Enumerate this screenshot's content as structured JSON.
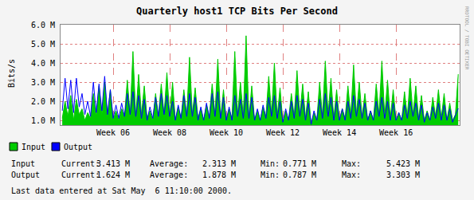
{
  "chart_data": {
    "type": "line",
    "title": "Quarterly host1 TCP Bits Per Second",
    "y_label": "Bits/s",
    "side_text": "RRDTOOL / TOBI OETIKER",
    "grid": true,
    "xlim": [
      4.14,
      18.25
    ],
    "xticks": [
      {
        "value": 6,
        "label": "Week 06"
      },
      {
        "value": 8,
        "label": "Week 08"
      },
      {
        "value": 10,
        "label": "Week 10"
      },
      {
        "value": 12,
        "label": "Week 12"
      },
      {
        "value": 14,
        "label": "Week 14"
      },
      {
        "value": 16,
        "label": "Week 16"
      }
    ],
    "ylim": [
      750000,
      6000000
    ],
    "yticks": [
      {
        "value": 1000000,
        "label": "1.0 M"
      },
      {
        "value": 2000000,
        "label": "2.0 M"
      },
      {
        "value": 3000000,
        "label": "3.0 M"
      },
      {
        "value": 4000000,
        "label": "4.0 M"
      },
      {
        "value": 5000000,
        "label": "5.0 M"
      },
      {
        "value": 6000000,
        "label": "6.0 M"
      }
    ],
    "x": [
      4.2,
      4.3,
      4.4,
      4.5,
      4.6,
      4.7,
      4.8,
      4.9,
      5.0,
      5.1,
      5.2,
      5.3,
      5.4,
      5.5,
      5.6,
      5.7,
      5.8,
      5.9,
      6.0,
      6.1,
      6.2,
      6.3,
      6.4,
      6.5,
      6.6,
      6.7,
      6.8,
      6.9,
      7.0,
      7.1,
      7.2,
      7.3,
      7.4,
      7.5,
      7.6,
      7.7,
      7.8,
      7.9,
      8.0,
      8.1,
      8.2,
      8.3,
      8.4,
      8.5,
      8.6,
      8.7,
      8.8,
      8.9,
      9.0,
      9.1,
      9.2,
      9.3,
      9.4,
      9.5,
      9.6,
      9.7,
      9.8,
      9.9,
      10.0,
      10.1,
      10.2,
      10.3,
      10.4,
      10.5,
      10.6,
      10.7,
      10.8,
      10.9,
      11.0,
      11.1,
      11.2,
      11.3,
      11.4,
      11.5,
      11.6,
      11.7,
      11.8,
      11.9,
      12.0,
      12.1,
      12.2,
      12.3,
      12.4,
      12.5,
      12.6,
      12.7,
      12.8,
      12.9,
      13.0,
      13.1,
      13.2,
      13.3,
      13.4,
      13.5,
      13.6,
      13.7,
      13.8,
      13.9,
      14.0,
      14.1,
      14.2,
      14.3,
      14.4,
      14.5,
      14.6,
      14.7,
      14.8,
      14.9,
      15.0,
      15.1,
      15.2,
      15.3,
      15.4,
      15.5,
      15.6,
      15.7,
      15.8,
      15.9,
      16.0,
      16.1,
      16.2,
      16.3,
      16.4,
      16.5,
      16.6,
      16.7,
      16.8,
      16.9,
      17.0,
      17.1,
      17.2,
      17.3,
      17.4,
      17.5,
      17.6,
      17.7,
      17.8,
      17.9,
      18.0,
      18.1,
      18.2
    ],
    "series": [
      {
        "name": "Input",
        "type": "area",
        "color": "#00cc00",
        "values": [
          1100000,
          2000000,
          1200000,
          2300000,
          1000000,
          2100000,
          1300000,
          1600000,
          1000000,
          1400000,
          1100000,
          2400000,
          1200000,
          2800000,
          1300000,
          3000000,
          1200000,
          2600000,
          1000000,
          1500000,
          1000000,
          1600000,
          1200000,
          3100000,
          1300000,
          4600000,
          1200000,
          3400000,
          1300000,
          2800000,
          1100000,
          1500000,
          1000000,
          2400000,
          1200000,
          2900000,
          1300000,
          3500000,
          1200000,
          3000000,
          1000000,
          1700000,
          1100000,
          2600000,
          1200000,
          4300000,
          1300000,
          2700000,
          1100000,
          1600000,
          1000000,
          1800000,
          1200000,
          2900000,
          1300000,
          4200000,
          1100000,
          2600000,
          1000000,
          1600000,
          1100000,
          4600000,
          1300000,
          3000000,
          1200000,
          5423000,
          1100000,
          2800000,
          1000000,
          1500000,
          1000000,
          1700000,
          1200000,
          3300000,
          1300000,
          4000000,
          1200000,
          2700000,
          900000,
          1500000,
          1000000,
          2400000,
          1200000,
          3600000,
          1300000,
          2900000,
          1100000,
          2500000,
          771000,
          1400000,
          1000000,
          3000000,
          1200000,
          4100000,
          1300000,
          3200000,
          1100000,
          2600000,
          1000000,
          1600000,
          1100000,
          2800000,
          1200000,
          3900000,
          1300000,
          3000000,
          1200000,
          2400000,
          1000000,
          1500000,
          1000000,
          2900000,
          1300000,
          4100000,
          1200000,
          3100000,
          1100000,
          2600000,
          1000000,
          1400000,
          1000000,
          2500000,
          1200000,
          3200000,
          1300000,
          2800000,
          1100000,
          2300000,
          1000000,
          1500000,
          1000000,
          2200000,
          1200000,
          2600000,
          1100000,
          2400000,
          1000000,
          1900000,
          1000000,
          1300000,
          3413000
        ]
      },
      {
        "name": "Output",
        "type": "line",
        "color": "#0000ff",
        "values": [
          1500000,
          3200000,
          1600000,
          3100000,
          1400000,
          3200000,
          1700000,
          2400000,
          1300000,
          2000000,
          1200000,
          3000000,
          1400000,
          2900000,
          1500000,
          3303000,
          1300000,
          2600000,
          1100000,
          1800000,
          1100000,
          1900000,
          1200000,
          2400000,
          1300000,
          2500000,
          1200000,
          2300000,
          1100000,
          2100000,
          1000000,
          1700000,
          1100000,
          2200000,
          1200000,
          2400000,
          1300000,
          2300000,
          1200000,
          2000000,
          1000000,
          1800000,
          1100000,
          2300000,
          1200000,
          2400000,
          1200000,
          2200000,
          1000000,
          1700000,
          1000000,
          1900000,
          1100000,
          2400000,
          1200000,
          2500000,
          1100000,
          2200000,
          1000000,
          1700000,
          1000000,
          2300000,
          1200000,
          2100000,
          1100000,
          2400000,
          1100000,
          2200000,
          1000000,
          1600000,
          1000000,
          1800000,
          1100000,
          2200000,
          1200000,
          2300000,
          1100000,
          2000000,
          900000,
          1600000,
          1000000,
          2000000,
          1100000,
          2300000,
          1200000,
          2100000,
          1000000,
          1900000,
          787000,
          1500000,
          1000000,
          2100000,
          1100000,
          2400000,
          1200000,
          2200000,
          1000000,
          2000000,
          1000000,
          1600000,
          1000000,
          2000000,
          1100000,
          2300000,
          1200000,
          2100000,
          1100000,
          1900000,
          1000000,
          1500000,
          1000000,
          2000000,
          1200000,
          2200000,
          1100000,
          2000000,
          1000000,
          1900000,
          1000000,
          1400000,
          1000000,
          1800000,
          1100000,
          2000000,
          1200000,
          1900000,
          1000000,
          1800000,
          900000,
          1400000,
          1000000,
          1700000,
          1100000,
          1900000,
          1000000,
          1800000,
          1000000,
          1600000,
          900000,
          1300000,
          1624000
        ]
      }
    ],
    "stats": [
      {
        "name": "Input",
        "fields": [
          {
            "label": "Current:",
            "value": "3.413 M"
          },
          {
            "label": "Average:",
            "value": "2.313 M"
          },
          {
            "label": "Min:",
            "value": "0.771 M"
          },
          {
            "label": "Max:",
            "value": "5.423 M"
          }
        ]
      },
      {
        "name": "Output",
        "fields": [
          {
            "label": "Current:",
            "value": "1.624 M"
          },
          {
            "label": "Average:",
            "value": "1.878 M"
          },
          {
            "label": "Min:",
            "value": "0.787 M"
          },
          {
            "label": "Max:",
            "value": "3.303 M"
          }
        ]
      }
    ],
    "footer": "Last data entered at Sat May  6 11:10:00 2000."
  }
}
